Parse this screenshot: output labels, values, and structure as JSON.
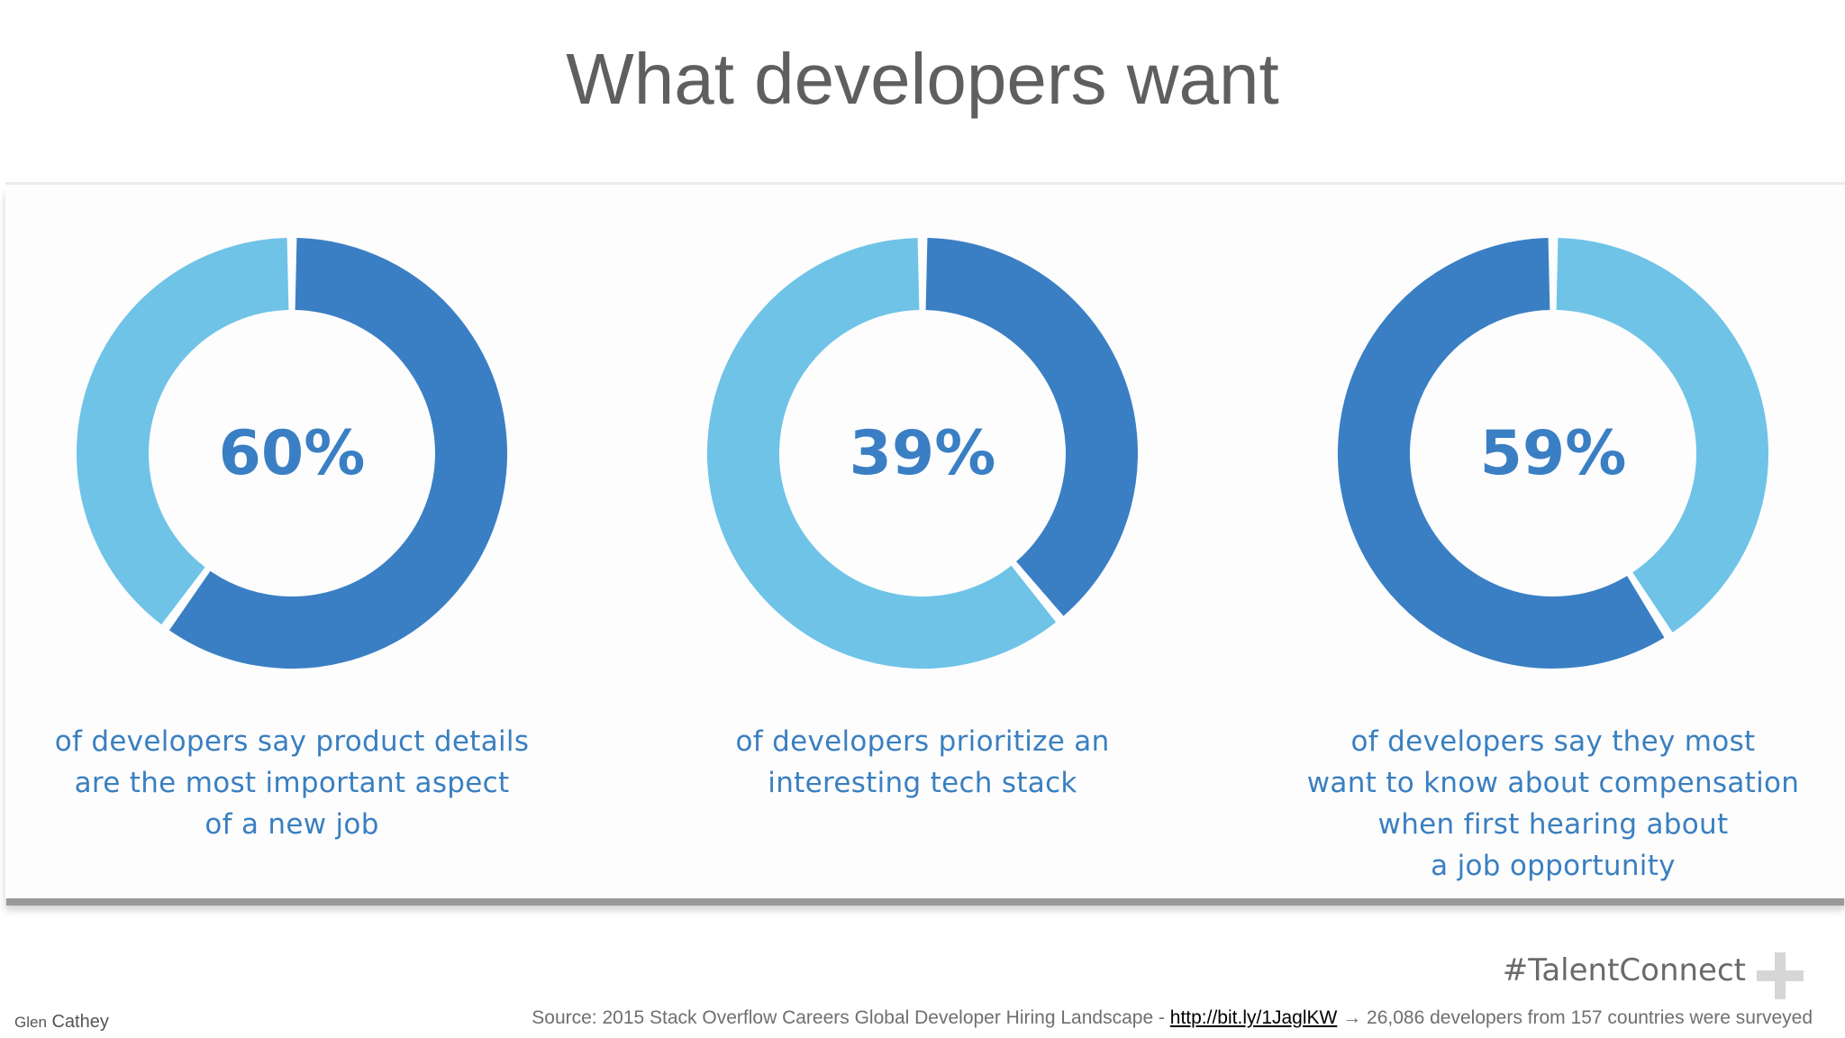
{
  "slide": {
    "title": "What developers want",
    "hashtag": "#TalentConnect",
    "author_first": "Glen",
    "author_last": "Cathey",
    "source_prefix": "Source: 2015 Stack Overflow Careers Global Developer Hiring Landscape - ",
    "source_link": "http://bit.ly/1JaglKW",
    "source_suffix": "26,086 developers from 157 countries were surveyed"
  },
  "colors": {
    "dark": "#3a7fc4",
    "light": "#6fc3e7",
    "title": "#5f5f5f",
    "caption": "#3a7fc0"
  },
  "chart_data": [
    {
      "type": "pie",
      "value": 60,
      "label": "60%",
      "highlight_from": "start",
      "caption": [
        "of developers say product details",
        "are the most important aspect",
        "of a new job"
      ]
    },
    {
      "type": "pie",
      "value": 39,
      "label": "39%",
      "highlight_from": "start",
      "caption": [
        "of developers prioritize an",
        "interesting tech stack"
      ]
    },
    {
      "type": "pie",
      "value": 59,
      "label": "59%",
      "highlight_from": "end",
      "caption": [
        "of developers say they most",
        "want to know about compensation",
        "when first hearing about",
        "a job opportunity"
      ]
    }
  ]
}
